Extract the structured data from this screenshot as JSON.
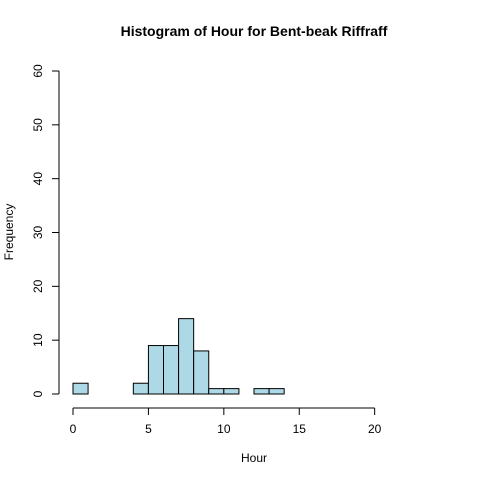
{
  "chart_data": {
    "type": "bar",
    "title": "Histogram of Hour for Bent-beak Riffraff",
    "xlabel": "Hour",
    "ylabel": "Frequency",
    "bin_width": 1,
    "bins": [
      {
        "start": 0,
        "end": 1,
        "count": 2
      },
      {
        "start": 1,
        "end": 2,
        "count": 0
      },
      {
        "start": 2,
        "end": 3,
        "count": 0
      },
      {
        "start": 3,
        "end": 4,
        "count": 0
      },
      {
        "start": 4,
        "end": 5,
        "count": 2
      },
      {
        "start": 5,
        "end": 6,
        "count": 9
      },
      {
        "start": 6,
        "end": 7,
        "count": 9
      },
      {
        "start": 7,
        "end": 8,
        "count": 14
      },
      {
        "start": 8,
        "end": 9,
        "count": 8
      },
      {
        "start": 9,
        "end": 10,
        "count": 1
      },
      {
        "start": 10,
        "end": 11,
        "count": 1
      },
      {
        "start": 11,
        "end": 12,
        "count": 0
      },
      {
        "start": 12,
        "end": 13,
        "count": 1
      },
      {
        "start": 13,
        "end": 14,
        "count": 1
      }
    ],
    "xlim": [
      0,
      24
    ],
    "ylim": [
      0,
      60
    ],
    "x_ticks": [
      "0",
      "5",
      "10",
      "15",
      "20"
    ],
    "y_ticks": [
      "0",
      "10",
      "20",
      "30",
      "40",
      "50",
      "60"
    ],
    "bar_color": "#ADD8E6",
    "border_color": "#000000",
    "grid": false,
    "legend": "none"
  }
}
